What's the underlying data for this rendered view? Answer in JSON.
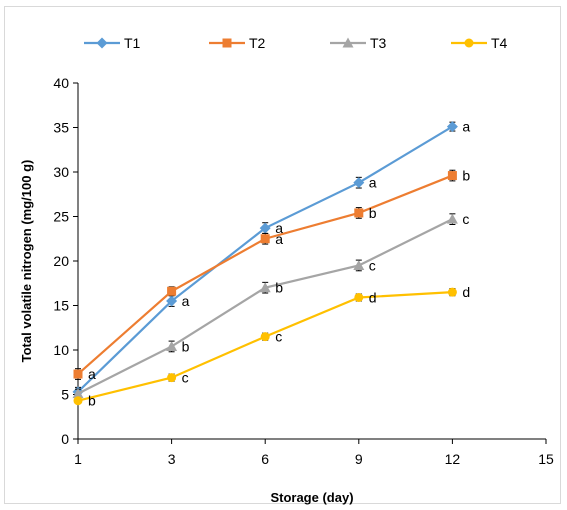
{
  "chart_data": {
    "type": "line",
    "xlabel": "Storage (day)",
    "ylabel": "Total volatile nitrogen (mg/100 g)",
    "x_ticks": [
      "1",
      "3",
      "6",
      "9",
      "12",
      "15"
    ],
    "y_ticks": [
      "0",
      "5",
      "10",
      "15",
      "20",
      "25",
      "30",
      "35",
      "40"
    ],
    "ylim": [
      0,
      40
    ],
    "categories": [
      "1",
      "3",
      "6",
      "9",
      "12"
    ],
    "legend_position": "top",
    "grid": false,
    "series": [
      {
        "name": "T1",
        "color": "#5b9bd5",
        "marker": "diamond",
        "values": [
          5.3,
          15.5,
          23.7,
          28.8,
          35.1
        ],
        "errors": [
          0.5,
          0.6,
          0.6,
          0.6,
          0.5
        ],
        "labels": [
          "",
          "a",
          "a",
          "a",
          "a"
        ]
      },
      {
        "name": "T2",
        "color": "#ed7d31",
        "marker": "square",
        "values": [
          7.3,
          16.6,
          22.5,
          25.4,
          29.6
        ],
        "errors": [
          0.6,
          0.5,
          0.6,
          0.6,
          0.6
        ],
        "labels": [
          "a",
          "",
          "a",
          "b",
          "b"
        ]
      },
      {
        "name": "T3",
        "color": "#a5a5a5",
        "marker": "triangle",
        "values": [
          5.1,
          10.4,
          17.0,
          19.5,
          24.7
        ],
        "errors": [
          0.5,
          0.6,
          0.6,
          0.6,
          0.6
        ],
        "labels": [
          "",
          "b",
          "b",
          "c",
          "c"
        ]
      },
      {
        "name": "T4",
        "color": "#ffc000",
        "marker": "circle",
        "values": [
          4.3,
          6.9,
          11.5,
          15.9,
          16.5
        ],
        "errors": [
          0.3,
          0.4,
          0.4,
          0.4,
          0.4
        ],
        "labels": [
          "b",
          "c",
          "c",
          "d",
          "d"
        ]
      }
    ]
  }
}
